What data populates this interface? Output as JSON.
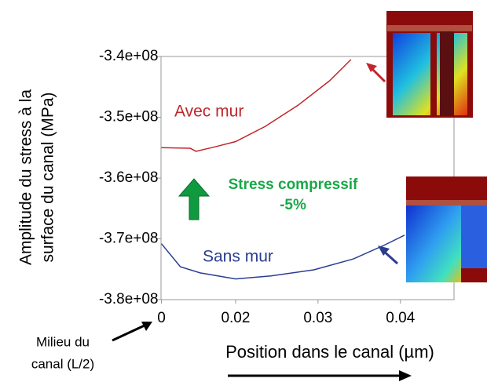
{
  "chart_data": {
    "type": "line",
    "y_label_lines": [
      "Amplitude du stress à la",
      "surface du canal (MPa)"
    ],
    "x_label": "Position dans le canal (µm)",
    "annotations": {
      "origin_lines": [
        "Milieu du",
        "canal (L/2)"
      ],
      "stress_lines": [
        "Stress compressif",
        "-5%"
      ]
    },
    "xlim": [
      0.011,
      0.0465
    ],
    "xticks": [
      {
        "value": 0.011,
        "label": "0"
      },
      0.02,
      0.03,
      0.04
    ],
    "ylim": [
      -380000000,
      -340000000
    ],
    "yticks": [
      {
        "value": -340000000,
        "label": "-3.4e+08"
      },
      {
        "value": -350000000,
        "label": "-3.5e+08"
      },
      {
        "value": -360000000,
        "label": "-3.6e+08"
      },
      {
        "value": -370000000,
        "label": "-3.7e+08"
      },
      {
        "value": -380000000,
        "label": "-3.8e+08"
      }
    ],
    "series": [
      {
        "name": "Avec mur",
        "color": "#c0262b",
        "x": [
          0.011,
          0.0145,
          0.0152,
          0.0177,
          0.02,
          0.0236,
          0.0276,
          0.0314,
          0.034
        ],
        "values": [
          -355000000,
          -355100000,
          -355600000,
          -354800000,
          -354000000,
          -351500000,
          -348000000,
          -344000000,
          -340500000
        ]
      },
      {
        "name": "Sans mur",
        "color": "#2b3d8f",
        "x": [
          0.011,
          0.0133,
          0.0157,
          0.02,
          0.0243,
          0.0295,
          0.0343,
          0.0381,
          0.0405
        ],
        "values": [
          -370800000,
          -374600000,
          -375600000,
          -376600000,
          -376100000,
          -375100000,
          -373300000,
          -371000000,
          -369400000
        ]
      }
    ]
  }
}
